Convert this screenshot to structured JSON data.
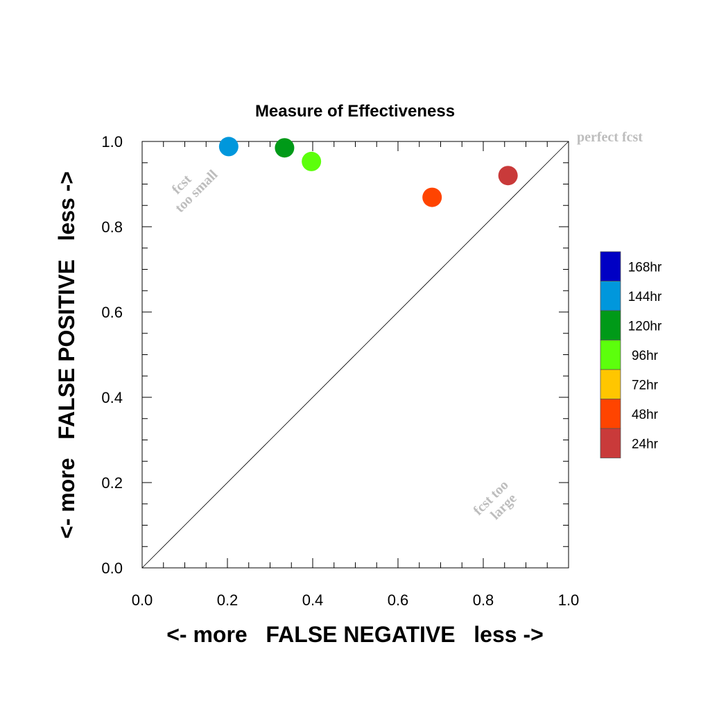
{
  "chart_data": {
    "type": "scatter",
    "title": "Measure of Effectiveness",
    "xlabel": "<- more   FALSE NEGATIVE   less ->",
    "ylabel": "<- more   FALSE POSITIVE   less ->",
    "xlim": [
      0.0,
      1.0
    ],
    "ylim": [
      0.0,
      1.0
    ],
    "x_ticks": [
      "0.0",
      "0.2",
      "0.4",
      "0.6",
      "0.8",
      "1.0"
    ],
    "y_ticks": [
      "0.0",
      "0.2",
      "0.4",
      "0.6",
      "0.8",
      "1.0"
    ],
    "grid": false,
    "reference_line": "diagonal",
    "annotations": {
      "perfect": "perfect fcst",
      "too_small": [
        "fcst",
        "too small"
      ],
      "too_large": [
        "fcst too",
        "large"
      ]
    },
    "legend": {
      "placement": "right",
      "entries": [
        {
          "label": "168hr",
          "color": "#0000c4"
        },
        {
          "label": "144hr",
          "color": "#0097dc"
        },
        {
          "label": "120hr",
          "color": "#009a18"
        },
        {
          "label": "96hr",
          "color": "#5cff0c"
        },
        {
          "label": "72hr",
          "color": "#ffc600"
        },
        {
          "label": "48hr",
          "color": "#ff4400"
        },
        {
          "label": "24hr",
          "color": "#c93a3a"
        }
      ]
    },
    "points": [
      {
        "series": "144hr",
        "x": 0.203,
        "y": 0.988,
        "color": "#0097dc"
      },
      {
        "series": "120hr",
        "x": 0.334,
        "y": 0.985,
        "color": "#009a18"
      },
      {
        "series": "96hr",
        "x": 0.397,
        "y": 0.953,
        "color": "#5cff0c"
      },
      {
        "series": "48hr",
        "x": 0.68,
        "y": 0.869,
        "color": "#ff4400"
      },
      {
        "series": "24hr",
        "x": 0.858,
        "y": 0.92,
        "color": "#c93a3a"
      }
    ]
  }
}
